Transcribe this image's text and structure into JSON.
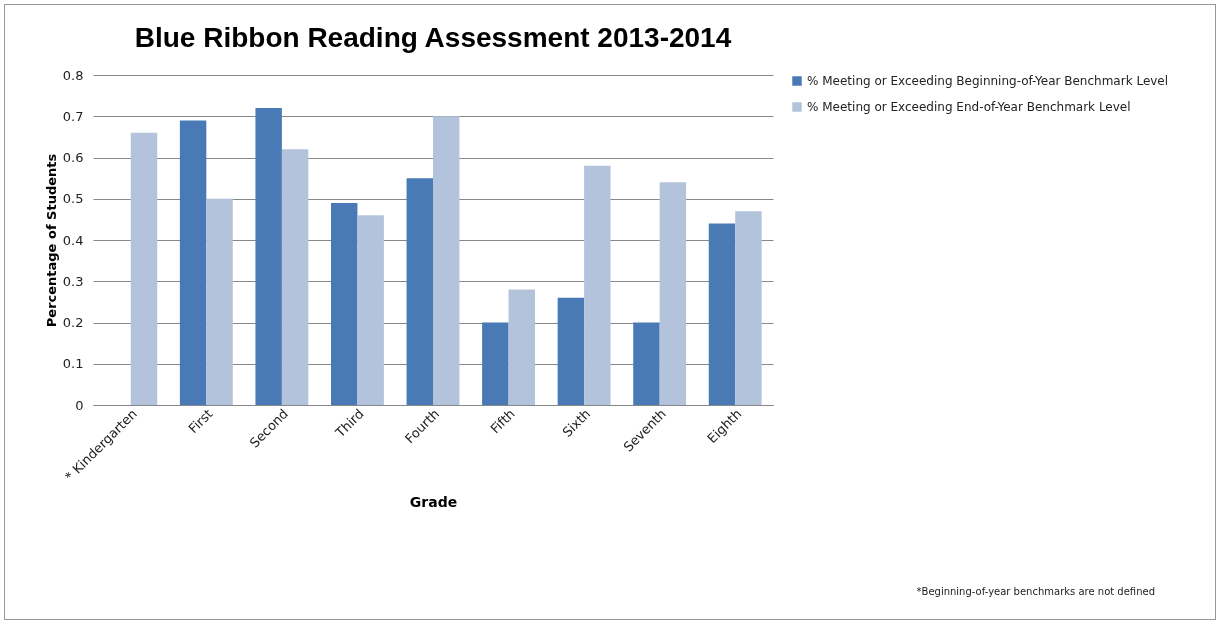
{
  "chart_data": {
    "type": "bar",
    "title": "Blue Ribbon Reading Assessment 2013-2014",
    "xlabel": "Grade",
    "ylabel": "Percentage of Students",
    "categories": [
      "* Kindergarten",
      "First",
      "Second",
      "Third",
      "Fourth",
      "Fifth",
      "Sixth",
      "Seventh",
      "Eighth"
    ],
    "series": [
      {
        "name": "% Meeting or Exceeding Beginning-of-Year Benchmark Level",
        "color": "#4a7ab5",
        "values": [
          null,
          0.69,
          0.72,
          0.49,
          0.55,
          0.2,
          0.26,
          0.2,
          0.44
        ]
      },
      {
        "name": "% Meeting or Exceeding End-of-Year Benchmark Level",
        "color": "#b3c3dc",
        "values": [
          0.66,
          0.5,
          0.62,
          0.46,
          0.7,
          0.28,
          0.58,
          0.54,
          0.47
        ]
      }
    ],
    "ylim": [
      0,
      0.8
    ],
    "yticks": [
      0,
      0.1,
      0.2,
      0.3,
      0.4,
      0.5,
      0.6,
      0.7,
      0.8
    ],
    "grid": "y",
    "legend": "right",
    "annotations": [
      "*Beginning-of-year  benchmarks  are not defined"
    ]
  }
}
